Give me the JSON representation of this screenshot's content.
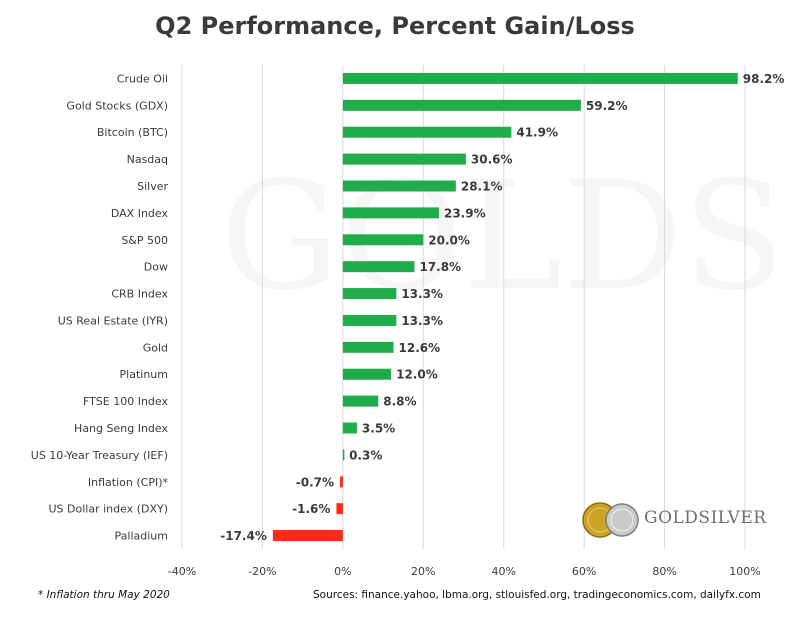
{
  "page": {
    "title": "Q2 Performance, Percent Gain/Loss",
    "footnote": "* Inflation thru May 2020",
    "sources": "Sources: finance.yahoo, lbma.org, stlouisfed.org, tradingeconomics.com, dailyfx.com",
    "logo_text": "GOLDSILVER",
    "watermark_text": "GOLDSILVER"
  },
  "chart_data": {
    "type": "bar",
    "orientation": "horizontal",
    "title": "Q2 Performance, Percent Gain/Loss",
    "xlabel": "",
    "ylabel": "",
    "xlim": [
      -40,
      100
    ],
    "xticks": [
      -40,
      -20,
      0,
      20,
      40,
      60,
      80,
      100
    ],
    "tick_suffix": "%",
    "grid": "vertical",
    "categories": [
      "Crude Oil",
      "Gold Stocks (GDX)",
      "Bitcoin (BTC)",
      "Nasdaq",
      "Silver",
      "DAX Index",
      "S&P 500",
      "Dow",
      "CRB Index",
      "US Real Estate (IYR)",
      "Gold",
      "Platinum",
      "FTSE 100 Index",
      "Hang Seng Index",
      "US 10-Year Treasury (IEF)",
      "Inflation (CPI)*",
      "US Dollar index (DXY)",
      "Palladium"
    ],
    "values": [
      98.2,
      59.2,
      41.9,
      30.6,
      28.1,
      23.9,
      20.0,
      17.8,
      13.3,
      13.3,
      12.6,
      12.0,
      8.8,
      3.5,
      0.3,
      -0.7,
      -1.6,
      -17.4
    ],
    "labels": [
      "98.2%",
      "59.2%",
      "41.9%",
      "30.6%",
      "28.1%",
      "23.9%",
      "20.0%",
      "17.8%",
      "13.3%",
      "13.3%",
      "12.6%",
      "12.0%",
      "8.8%",
      "3.5%",
      "0.3%",
      "-0.7%",
      "-1.6%",
      "-17.4%"
    ],
    "colors": {
      "positive": "#21ac4b",
      "negative": "#ff2a17",
      "grid": "#d9d9d9",
      "text": "#3b3b3b"
    }
  }
}
